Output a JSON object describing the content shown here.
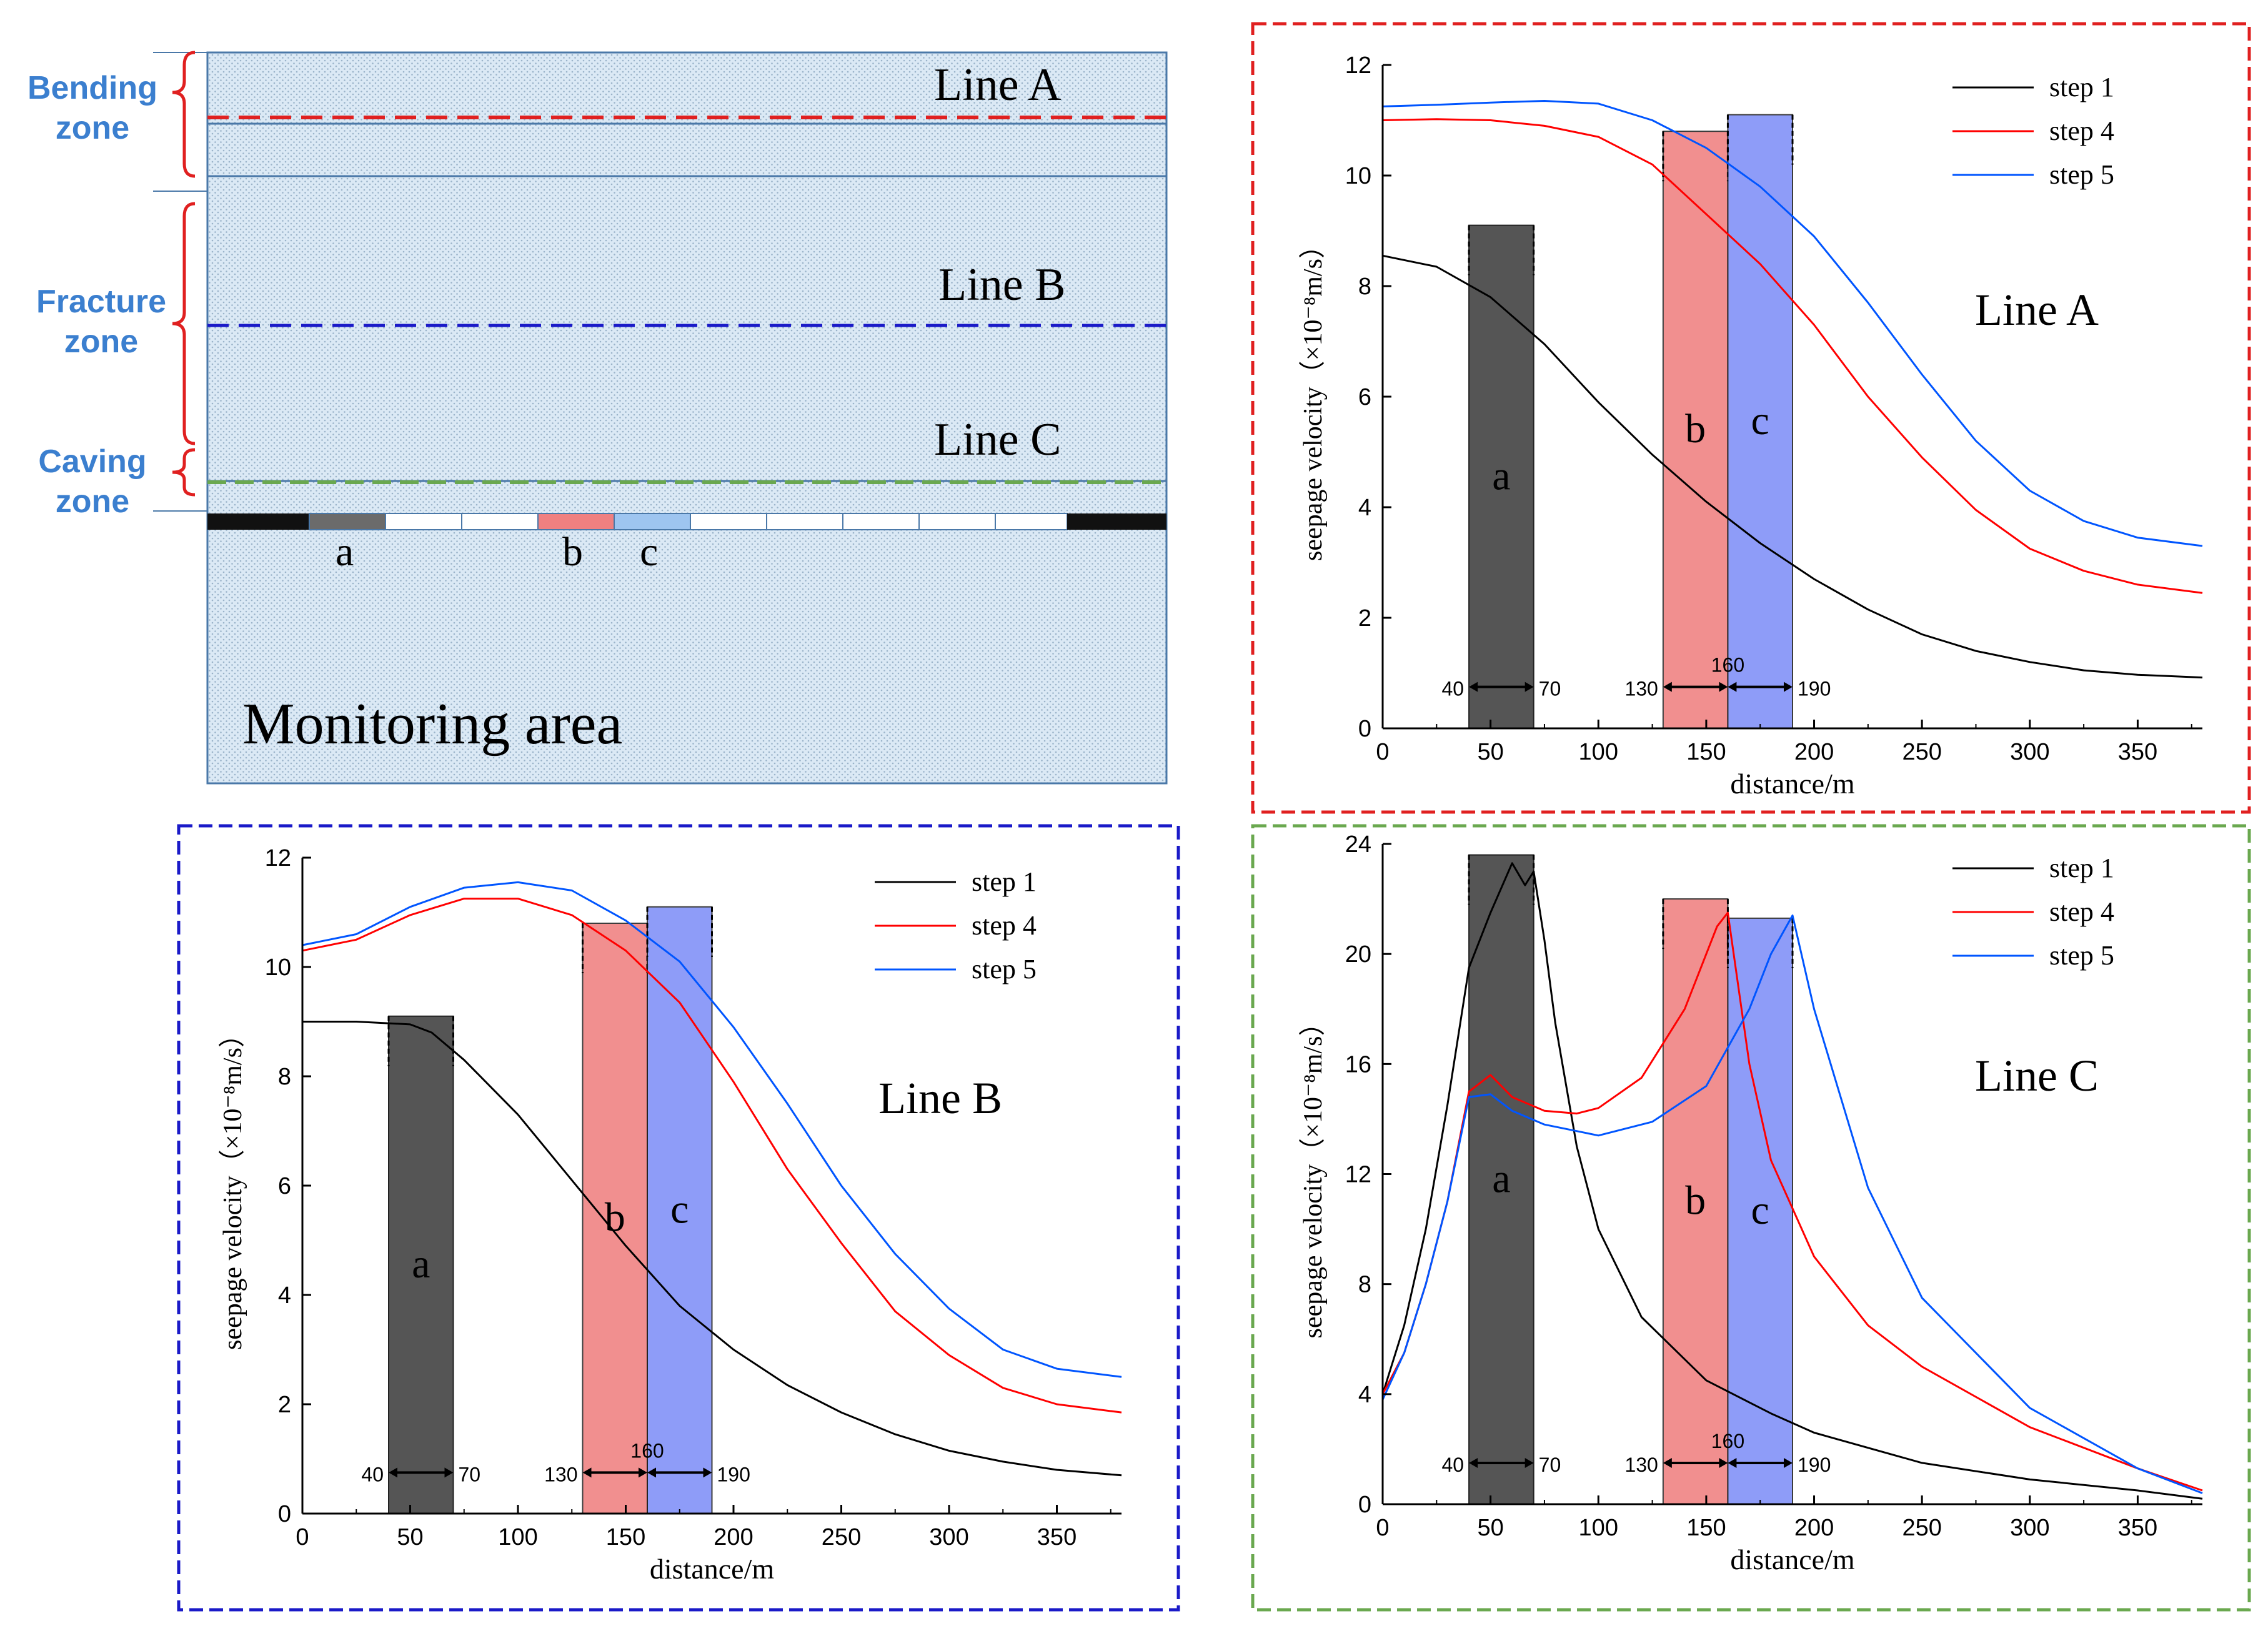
{
  "colors": {
    "step1": "#000000",
    "step4": "#ff0000",
    "step5": "#0055ff",
    "bar_a": "#555555",
    "bar_b": "#f08080",
    "bar_c": "#7f8ff8",
    "zone_label": "#3b7fcf",
    "frame_A": "#e02020",
    "frame_B": "#1a1ac8",
    "frame_C": "#6aa84f",
    "stratum_fill": "#dbe9f5",
    "brace": "#e02020"
  },
  "schematic": {
    "zones": [
      {
        "line1": "Bending",
        "line2": "zone"
      },
      {
        "line1": "Fracture",
        "line2": "zone"
      },
      {
        "line1": "Caving",
        "line2": "zone"
      }
    ],
    "line_labels": [
      "Line A",
      "Line B",
      "Line C"
    ],
    "segment_labels": [
      "a",
      "b",
      "c"
    ],
    "area_label": "Monitoring area"
  },
  "chart_data": [
    {
      "type": "line",
      "panel": "top-right",
      "title": "Line A",
      "xlabel": "distance/m",
      "ylabel": "seepage velocity（×10⁻⁸m/s）",
      "xlim": [
        0,
        380
      ],
      "ylim": [
        0,
        12
      ],
      "xticks": [
        0,
        50,
        100,
        150,
        200,
        250,
        300,
        350
      ],
      "yticks": [
        0,
        2,
        4,
        6,
        8,
        10,
        12
      ],
      "regions": [
        {
          "label": "a",
          "x0": 40,
          "x1": 70,
          "top": 9.1,
          "color_key": "bar_a"
        },
        {
          "label": "b",
          "x0": 130,
          "x1": 160,
          "top": 10.8,
          "color_key": "bar_b"
        },
        {
          "label": "c",
          "x0": 160,
          "x1": 190,
          "top": 11.1,
          "color_key": "bar_c"
        }
      ],
      "arrow_y": 0.75,
      "arrow_labels": [
        "40",
        "70",
        "130",
        "160",
        "190"
      ],
      "legend_position": "top-right",
      "series": [
        {
          "name": "step 1",
          "x": [
            0,
            25,
            50,
            75,
            100,
            125,
            150,
            175,
            200,
            225,
            250,
            275,
            300,
            325,
            350,
            380
          ],
          "values": [
            8.55,
            8.35,
            7.8,
            6.95,
            5.9,
            4.95,
            4.1,
            3.35,
            2.7,
            2.15,
            1.7,
            1.4,
            1.2,
            1.05,
            0.97,
            0.92
          ]
        },
        {
          "name": "step 4",
          "x": [
            0,
            25,
            50,
            75,
            100,
            125,
            150,
            175,
            200,
            225,
            250,
            275,
            300,
            325,
            350,
            380
          ],
          "values": [
            11.0,
            11.02,
            11.0,
            10.9,
            10.7,
            10.2,
            9.3,
            8.4,
            7.3,
            6.0,
            4.9,
            3.95,
            3.25,
            2.85,
            2.6,
            2.45
          ]
        },
        {
          "name": "step 5",
          "x": [
            0,
            25,
            50,
            75,
            100,
            125,
            150,
            175,
            200,
            225,
            250,
            275,
            300,
            325,
            350,
            380
          ],
          "values": [
            11.25,
            11.28,
            11.32,
            11.35,
            11.3,
            11.0,
            10.5,
            9.8,
            8.9,
            7.7,
            6.4,
            5.2,
            4.3,
            3.75,
            3.45,
            3.3
          ]
        }
      ]
    },
    {
      "type": "line",
      "panel": "bottom-left",
      "title": "Line B",
      "xlabel": "distance/m",
      "ylabel": "seepage velocity（×10⁻⁸m/s）",
      "xlim": [
        0,
        380
      ],
      "ylim": [
        0,
        12
      ],
      "xticks": [
        0,
        50,
        100,
        150,
        200,
        250,
        300,
        350
      ],
      "yticks": [
        0,
        2,
        4,
        6,
        8,
        10,
        12
      ],
      "regions": [
        {
          "label": "a",
          "x0": 40,
          "x1": 70,
          "top": 9.1,
          "color_key": "bar_a"
        },
        {
          "label": "b",
          "x0": 130,
          "x1": 160,
          "top": 10.8,
          "color_key": "bar_b"
        },
        {
          "label": "c",
          "x0": 160,
          "x1": 190,
          "top": 11.1,
          "color_key": "bar_c"
        }
      ],
      "arrow_y": 0.75,
      "arrow_labels": [
        "40",
        "70",
        "130",
        "160",
        "190"
      ],
      "legend_position": "top-right",
      "series": [
        {
          "name": "step 1",
          "x": [
            0,
            25,
            50,
            60,
            75,
            100,
            125,
            150,
            175,
            200,
            225,
            250,
            275,
            300,
            325,
            350,
            380
          ],
          "values": [
            9.0,
            9.0,
            8.95,
            8.8,
            8.3,
            7.3,
            6.1,
            4.9,
            3.8,
            3.0,
            2.35,
            1.85,
            1.45,
            1.15,
            0.95,
            0.8,
            0.7
          ]
        },
        {
          "name": "step 4",
          "x": [
            0,
            25,
            50,
            75,
            100,
            125,
            150,
            175,
            200,
            225,
            250,
            275,
            300,
            325,
            350,
            380
          ],
          "values": [
            10.3,
            10.5,
            10.95,
            11.25,
            11.25,
            10.95,
            10.3,
            9.35,
            7.9,
            6.3,
            4.95,
            3.7,
            2.9,
            2.3,
            2.0,
            1.85
          ]
        },
        {
          "name": "step 5",
          "x": [
            0,
            25,
            50,
            75,
            100,
            125,
            150,
            175,
            200,
            225,
            250,
            275,
            300,
            325,
            350,
            380
          ],
          "values": [
            10.4,
            10.6,
            11.1,
            11.45,
            11.55,
            11.4,
            10.85,
            10.1,
            8.9,
            7.5,
            6.0,
            4.75,
            3.75,
            3.0,
            2.65,
            2.5
          ]
        }
      ]
    },
    {
      "type": "line",
      "panel": "bottom-right",
      "title": "Line C",
      "xlabel": "distance/m",
      "ylabel": "seepage velocity（×10⁻⁸m/s）",
      "xlim": [
        0,
        380
      ],
      "ylim": [
        0,
        24
      ],
      "xticks": [
        0,
        50,
        100,
        150,
        200,
        250,
        300,
        350
      ],
      "yticks": [
        0,
        4,
        8,
        12,
        16,
        20,
        24
      ],
      "regions": [
        {
          "label": "a",
          "x0": 40,
          "x1": 70,
          "top": 23.6,
          "color_key": "bar_a"
        },
        {
          "label": "b",
          "x0": 130,
          "x1": 160,
          "top": 22.0,
          "color_key": "bar_b"
        },
        {
          "label": "c",
          "x0": 160,
          "x1": 190,
          "top": 21.3,
          "color_key": "bar_c"
        }
      ],
      "arrow_y": 1.5,
      "arrow_labels": [
        "40",
        "70",
        "130",
        "160",
        "190"
      ],
      "legend_position": "top-right",
      "series": [
        {
          "name": "step 1",
          "x": [
            0,
            10,
            20,
            30,
            40,
            50,
            60,
            66,
            70,
            75,
            80,
            90,
            100,
            120,
            150,
            180,
            200,
            250,
            300,
            350,
            380
          ],
          "values": [
            4.0,
            6.5,
            10.0,
            14.5,
            19.5,
            21.5,
            23.3,
            22.5,
            23.0,
            20.5,
            17.5,
            13.0,
            10.0,
            6.8,
            4.5,
            3.3,
            2.6,
            1.5,
            0.9,
            0.5,
            0.2
          ]
        },
        {
          "name": "step 4",
          "x": [
            0,
            10,
            20,
            30,
            40,
            50,
            60,
            75,
            90,
            100,
            120,
            140,
            155,
            160,
            170,
            180,
            200,
            225,
            250,
            300,
            350,
            380
          ],
          "values": [
            4.0,
            5.5,
            8.0,
            11.0,
            15.0,
            15.6,
            14.8,
            14.3,
            14.2,
            14.4,
            15.5,
            18.0,
            21.0,
            21.5,
            16.0,
            12.5,
            9.0,
            6.5,
            5.0,
            2.8,
            1.3,
            0.5
          ]
        },
        {
          "name": "step 5",
          "x": [
            0,
            10,
            20,
            30,
            40,
            50,
            60,
            75,
            100,
            125,
            150,
            170,
            180,
            190,
            200,
            225,
            250,
            300,
            350,
            380
          ],
          "values": [
            3.8,
            5.5,
            8.0,
            11.0,
            14.8,
            14.9,
            14.3,
            13.8,
            13.4,
            13.9,
            15.2,
            18.0,
            20.0,
            21.4,
            18.0,
            11.5,
            7.5,
            3.5,
            1.3,
            0.4
          ]
        }
      ]
    }
  ]
}
